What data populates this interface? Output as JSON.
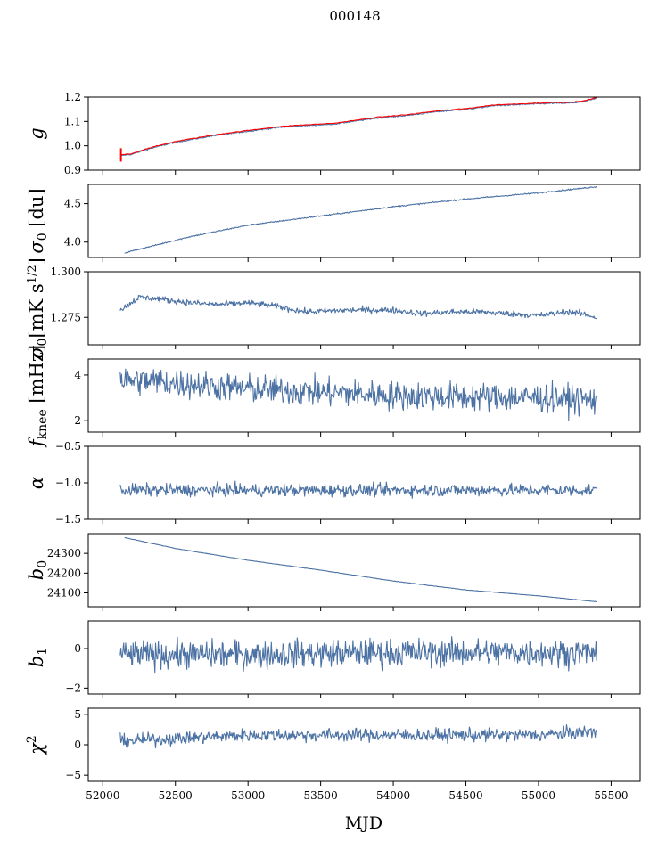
{
  "figure": {
    "title": "000148",
    "xlabel": "MJD"
  },
  "colors": {
    "line": "#4c72a4",
    "overlay": "#ff0000"
  },
  "chart_data": [
    {
      "type": "line",
      "ylabel": "g",
      "ylim": [
        0.9,
        1.2
      ],
      "yticks": [
        0.9,
        1.0,
        1.1,
        1.2
      ],
      "ytick_labels": [
        "0.9",
        "1.0",
        "1.1",
        "1.2"
      ],
      "noise": 0.002,
      "overlay": true,
      "series": [
        {
          "x": [
            52120,
            52200,
            52300,
            52500,
            52800,
            53000,
            53200,
            53300,
            53600,
            53900,
            54100,
            54300,
            54500,
            54700,
            54900,
            55100,
            55200,
            55300,
            55400
          ],
          "y": [
            0.96,
            0.965,
            0.985,
            1.015,
            1.045,
            1.06,
            1.075,
            1.08,
            1.09,
            1.115,
            1.125,
            1.14,
            1.15,
            1.165,
            1.17,
            1.175,
            1.175,
            1.18,
            1.195
          ]
        }
      ]
    },
    {
      "type": "line",
      "ylabel": "σ0 [du]",
      "ylim": [
        3.8,
        4.75
      ],
      "yticks": [
        4.0,
        4.5
      ],
      "ytick_labels": [
        "4.0",
        "4.5"
      ],
      "noise": 0.006,
      "overlay": false,
      "series": [
        {
          "x": [
            52150,
            52300,
            52600,
            53000,
            53500,
            54000,
            54500,
            55000,
            55400
          ],
          "y": [
            3.86,
            3.93,
            4.07,
            4.22,
            4.34,
            4.46,
            4.56,
            4.64,
            4.72
          ]
        }
      ]
    },
    {
      "type": "line",
      "ylabel": "σ0[mK s^1/2]",
      "ylim": [
        1.26,
        1.3
      ],
      "yticks": [
        1.275,
        1.3
      ],
      "ytick_labels": [
        "1.275",
        "1.300"
      ],
      "noise": 0.0012,
      "overlay": false,
      "series": [
        {
          "x": [
            52120,
            52250,
            52400,
            52600,
            52800,
            53000,
            53200,
            53400,
            53700,
            54000,
            54200,
            54400,
            54600,
            54800,
            55000,
            55200,
            55300,
            55400
          ],
          "y": [
            1.279,
            1.286,
            1.285,
            1.283,
            1.282,
            1.283,
            1.281,
            1.278,
            1.279,
            1.279,
            1.277,
            1.278,
            1.278,
            1.277,
            1.276,
            1.278,
            1.277,
            1.275
          ]
        }
      ]
    },
    {
      "type": "line",
      "ylabel": "f_knee [mHz]",
      "ylim": [
        1.5,
        4.7
      ],
      "yticks": [
        2,
        4
      ],
      "ytick_labels": [
        "2",
        "4"
      ],
      "noise": 0.45,
      "overlay": false,
      "series": [
        {
          "x": [
            52120,
            52400,
            53000,
            53500,
            54000,
            54500,
            55000,
            55400
          ],
          "y": [
            3.8,
            3.7,
            3.4,
            3.25,
            3.1,
            3.05,
            3.0,
            2.9
          ]
        }
      ]
    },
    {
      "type": "line",
      "ylabel": "α",
      "ylim": [
        -1.5,
        -0.5
      ],
      "yticks": [
        -1.5,
        -1.0,
        -0.5
      ],
      "ytick_labels": [
        "−1.5",
        "−1.0",
        "−0.5"
      ],
      "noise": 0.06,
      "overlay": false,
      "series": [
        {
          "x": [
            52120,
            53000,
            54000,
            55000,
            55400
          ],
          "y": [
            -1.1,
            -1.1,
            -1.1,
            -1.1,
            -1.1
          ]
        }
      ]
    },
    {
      "type": "line",
      "ylabel": "b0",
      "ylim": [
        24030,
        24400
      ],
      "yticks": [
        24100,
        24200,
        24300
      ],
      "ytick_labels": [
        "24100",
        "24200",
        "24300"
      ],
      "noise": 0.8,
      "overlay": false,
      "series": [
        {
          "x": [
            52150,
            52500,
            53000,
            53500,
            54000,
            54500,
            55000,
            55400
          ],
          "y": [
            24380,
            24325,
            24265,
            24215,
            24160,
            24115,
            24085,
            24055
          ]
        }
      ]
    },
    {
      "type": "line",
      "ylabel": "b1",
      "ylim": [
        -2.3,
        1.4
      ],
      "yticks": [
        -2,
        0
      ],
      "ytick_labels": [
        "−2",
        "0"
      ],
      "noise": 0.5,
      "overlay": false,
      "series": [
        {
          "x": [
            52120,
            53000,
            54000,
            55000,
            55400
          ],
          "y": [
            -0.3,
            -0.3,
            -0.2,
            -0.2,
            -0.2
          ]
        }
      ]
    },
    {
      "type": "line",
      "ylabel": "χ2",
      "ylim": [
        -6,
        6
      ],
      "yticks": [
        -5,
        0,
        5
      ],
      "ytick_labels": [
        "−5",
        "0",
        "5"
      ],
      "noise": 0.75,
      "overlay": false,
      "series": [
        {
          "x": [
            52120,
            53000,
            54000,
            55000,
            55400
          ],
          "y": [
            0.6,
            1.6,
            1.6,
            1.6,
            2.2
          ]
        }
      ]
    }
  ],
  "xaxis": {
    "xlim": [
      51900,
      55700
    ],
    "ticks": [
      52000,
      52500,
      53000,
      53500,
      54000,
      54500,
      55000,
      55500
    ],
    "tick_labels": [
      "52000",
      "52500",
      "53000",
      "53500",
      "54000",
      "54500",
      "55000",
      "55500"
    ]
  }
}
